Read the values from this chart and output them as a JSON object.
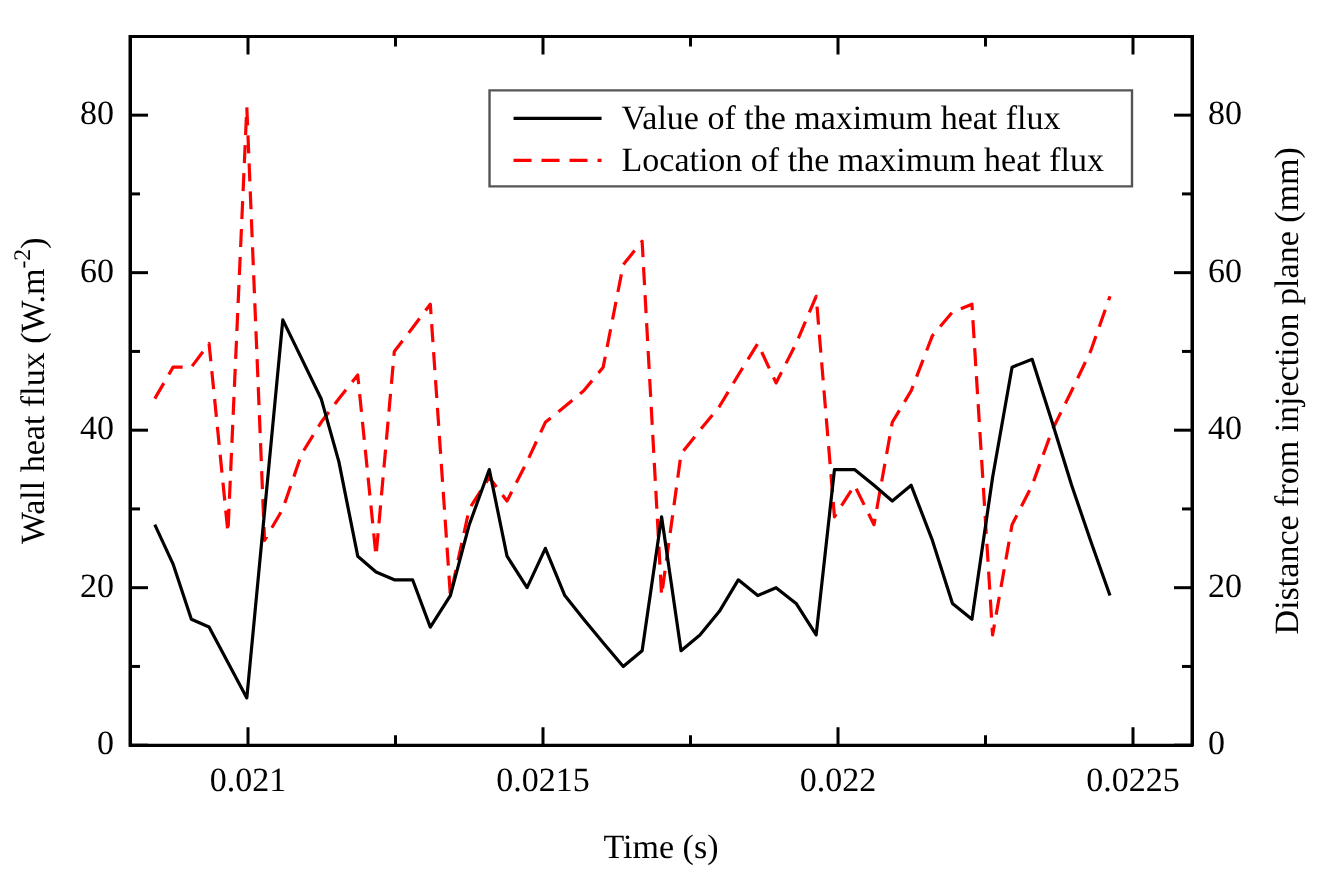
{
  "chart_data": {
    "type": "line",
    "xlabel": "Time (s)",
    "ylabel": "Wall heat flux (W.m$^{-2}$)",
    "y2label": "Distance from injection plane (mm)",
    "x": [
      0.020842,
      0.020873,
      0.020904,
      0.020934,
      0.020966,
      0.020998,
      0.021028,
      0.021059,
      0.021091,
      0.021124,
      0.021154,
      0.021186,
      0.021217,
      0.021248,
      0.021279,
      0.021309,
      0.021343,
      0.021375,
      0.021409,
      0.021439,
      0.021473,
      0.021504,
      0.021537,
      0.021569,
      0.021602,
      0.021636,
      0.021668,
      0.021701,
      0.021734,
      0.021766,
      0.021799,
      0.021831,
      0.021864,
      0.021895,
      0.021929,
      0.021963,
      0.021994,
      0.022028,
      0.022061,
      0.022092,
      0.022124,
      0.02216,
      0.022194,
      0.022227,
      0.022262,
      0.022295,
      0.022329,
      0.022363,
      0.022396,
      0.022428,
      0.022461
    ],
    "series": [
      {
        "name": "Value of the maximum heat flux",
        "color": "#000000",
        "line_style": "solid",
        "values": [
          28,
          23,
          16,
          15,
          null,
          6,
          null,
          54,
          null,
          44,
          36,
          24,
          22,
          21,
          21,
          15,
          19,
          28,
          35,
          24,
          20,
          25,
          19,
          16,
          13,
          10,
          12,
          29,
          12,
          14,
          17,
          21,
          19,
          20,
          18,
          14,
          35,
          35,
          33,
          31,
          33,
          26,
          18,
          16,
          34,
          48,
          49,
          41,
          33,
          26,
          19
        ]
      },
      {
        "name": "Location of the maximum heat flux",
        "color": "#ff0000",
        "line_style": "dashed",
        "axis": "y2",
        "values": [
          44,
          48,
          48,
          51,
          27,
          81,
          26,
          30,
          37,
          41,
          44,
          47,
          24,
          50,
          53,
          56,
          19,
          30,
          34,
          31,
          36,
          41,
          43,
          45,
          48,
          61,
          64,
          19,
          37,
          40,
          43,
          47,
          51,
          46,
          51,
          57,
          29,
          33,
          28,
          41,
          45,
          52,
          55,
          56,
          14,
          28,
          33,
          40,
          45,
          50,
          57
        ]
      }
    ],
    "xlim": [
      0.0208,
      0.0226
    ],
    "xticks": [
      0.021,
      {
        "value": 0.02125,
        "label": null
      },
      0.0215,
      {
        "value": 0.02175,
        "label": null
      },
      0.022,
      {
        "value": 0.02225,
        "label": null
      },
      0.0225
    ],
    "ylim": [
      0,
      90
    ],
    "yticks": [
      0,
      {
        "value": 10,
        "label": null
      },
      20,
      {
        "value": 30,
        "label": null
      },
      40,
      {
        "value": 50,
        "label": null
      },
      60,
      {
        "value": 70,
        "label": null
      },
      80
    ],
    "y2lim": [
      0,
      90
    ],
    "y2ticks": [
      0,
      {
        "value": 10,
        "label": null
      },
      20,
      {
        "value": 30,
        "label": null
      },
      40,
      {
        "value": 50,
        "label": null
      },
      60,
      {
        "value": 70,
        "label": null
      },
      80
    ],
    "grid": false,
    "legend": "top right"
  }
}
